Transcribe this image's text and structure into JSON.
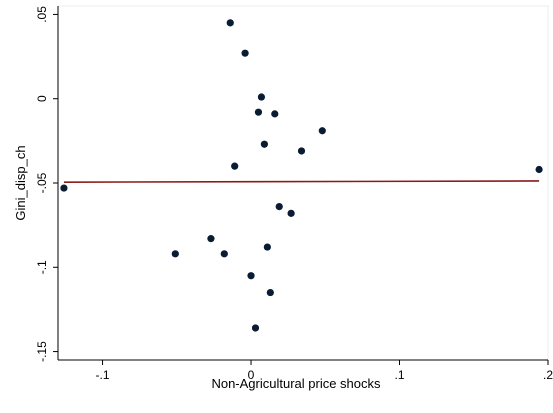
{
  "chart_data": {
    "type": "scatter",
    "xlabel": "Non-Agricultural price shocks",
    "ylabel": "Gini_disp_ch",
    "xlim": [
      -0.13,
      0.2
    ],
    "ylim": [
      -0.155,
      0.055
    ],
    "xticks": [
      {
        "value": -0.1,
        "label": "-.1"
      },
      {
        "value": 0,
        "label": "0"
      },
      {
        "value": 0.1,
        "label": ".1"
      },
      {
        "value": 0.2,
        "label": ".2"
      }
    ],
    "yticks": [
      {
        "value": 0.05,
        "label": ".05"
      },
      {
        "value": 0,
        "label": "0"
      },
      {
        "value": -0.05,
        "label": "-.05"
      },
      {
        "value": -0.1,
        "label": "-.1"
      },
      {
        "value": -0.15,
        "label": "-.15"
      }
    ],
    "grid": false,
    "legend": "none",
    "series": [
      {
        "kind": "scatter",
        "color": "#0a1c33",
        "points": [
          {
            "x": -0.126,
            "y": -0.053
          },
          {
            "x": -0.051,
            "y": -0.092
          },
          {
            "x": -0.027,
            "y": -0.083
          },
          {
            "x": -0.018,
            "y": -0.092
          },
          {
            "x": -0.014,
            "y": 0.045
          },
          {
            "x": -0.011,
            "y": -0.04
          },
          {
            "x": -0.004,
            "y": 0.027
          },
          {
            "x": 0.0,
            "y": -0.105
          },
          {
            "x": 0.003,
            "y": -0.136
          },
          {
            "x": 0.005,
            "y": -0.008
          },
          {
            "x": 0.007,
            "y": 0.001
          },
          {
            "x": 0.009,
            "y": -0.027
          },
          {
            "x": 0.011,
            "y": -0.088
          },
          {
            "x": 0.013,
            "y": -0.115
          },
          {
            "x": 0.016,
            "y": -0.009
          },
          {
            "x": 0.019,
            "y": -0.064
          },
          {
            "x": 0.027,
            "y": -0.068
          },
          {
            "x": 0.034,
            "y": -0.031
          },
          {
            "x": 0.048,
            "y": -0.019
          },
          {
            "x": 0.194,
            "y": -0.042
          }
        ]
      },
      {
        "kind": "line",
        "color": "#8b1a1a",
        "points": [
          {
            "x": -0.126,
            "y": -0.0495
          },
          {
            "x": 0.194,
            "y": -0.0488
          }
        ]
      }
    ]
  }
}
